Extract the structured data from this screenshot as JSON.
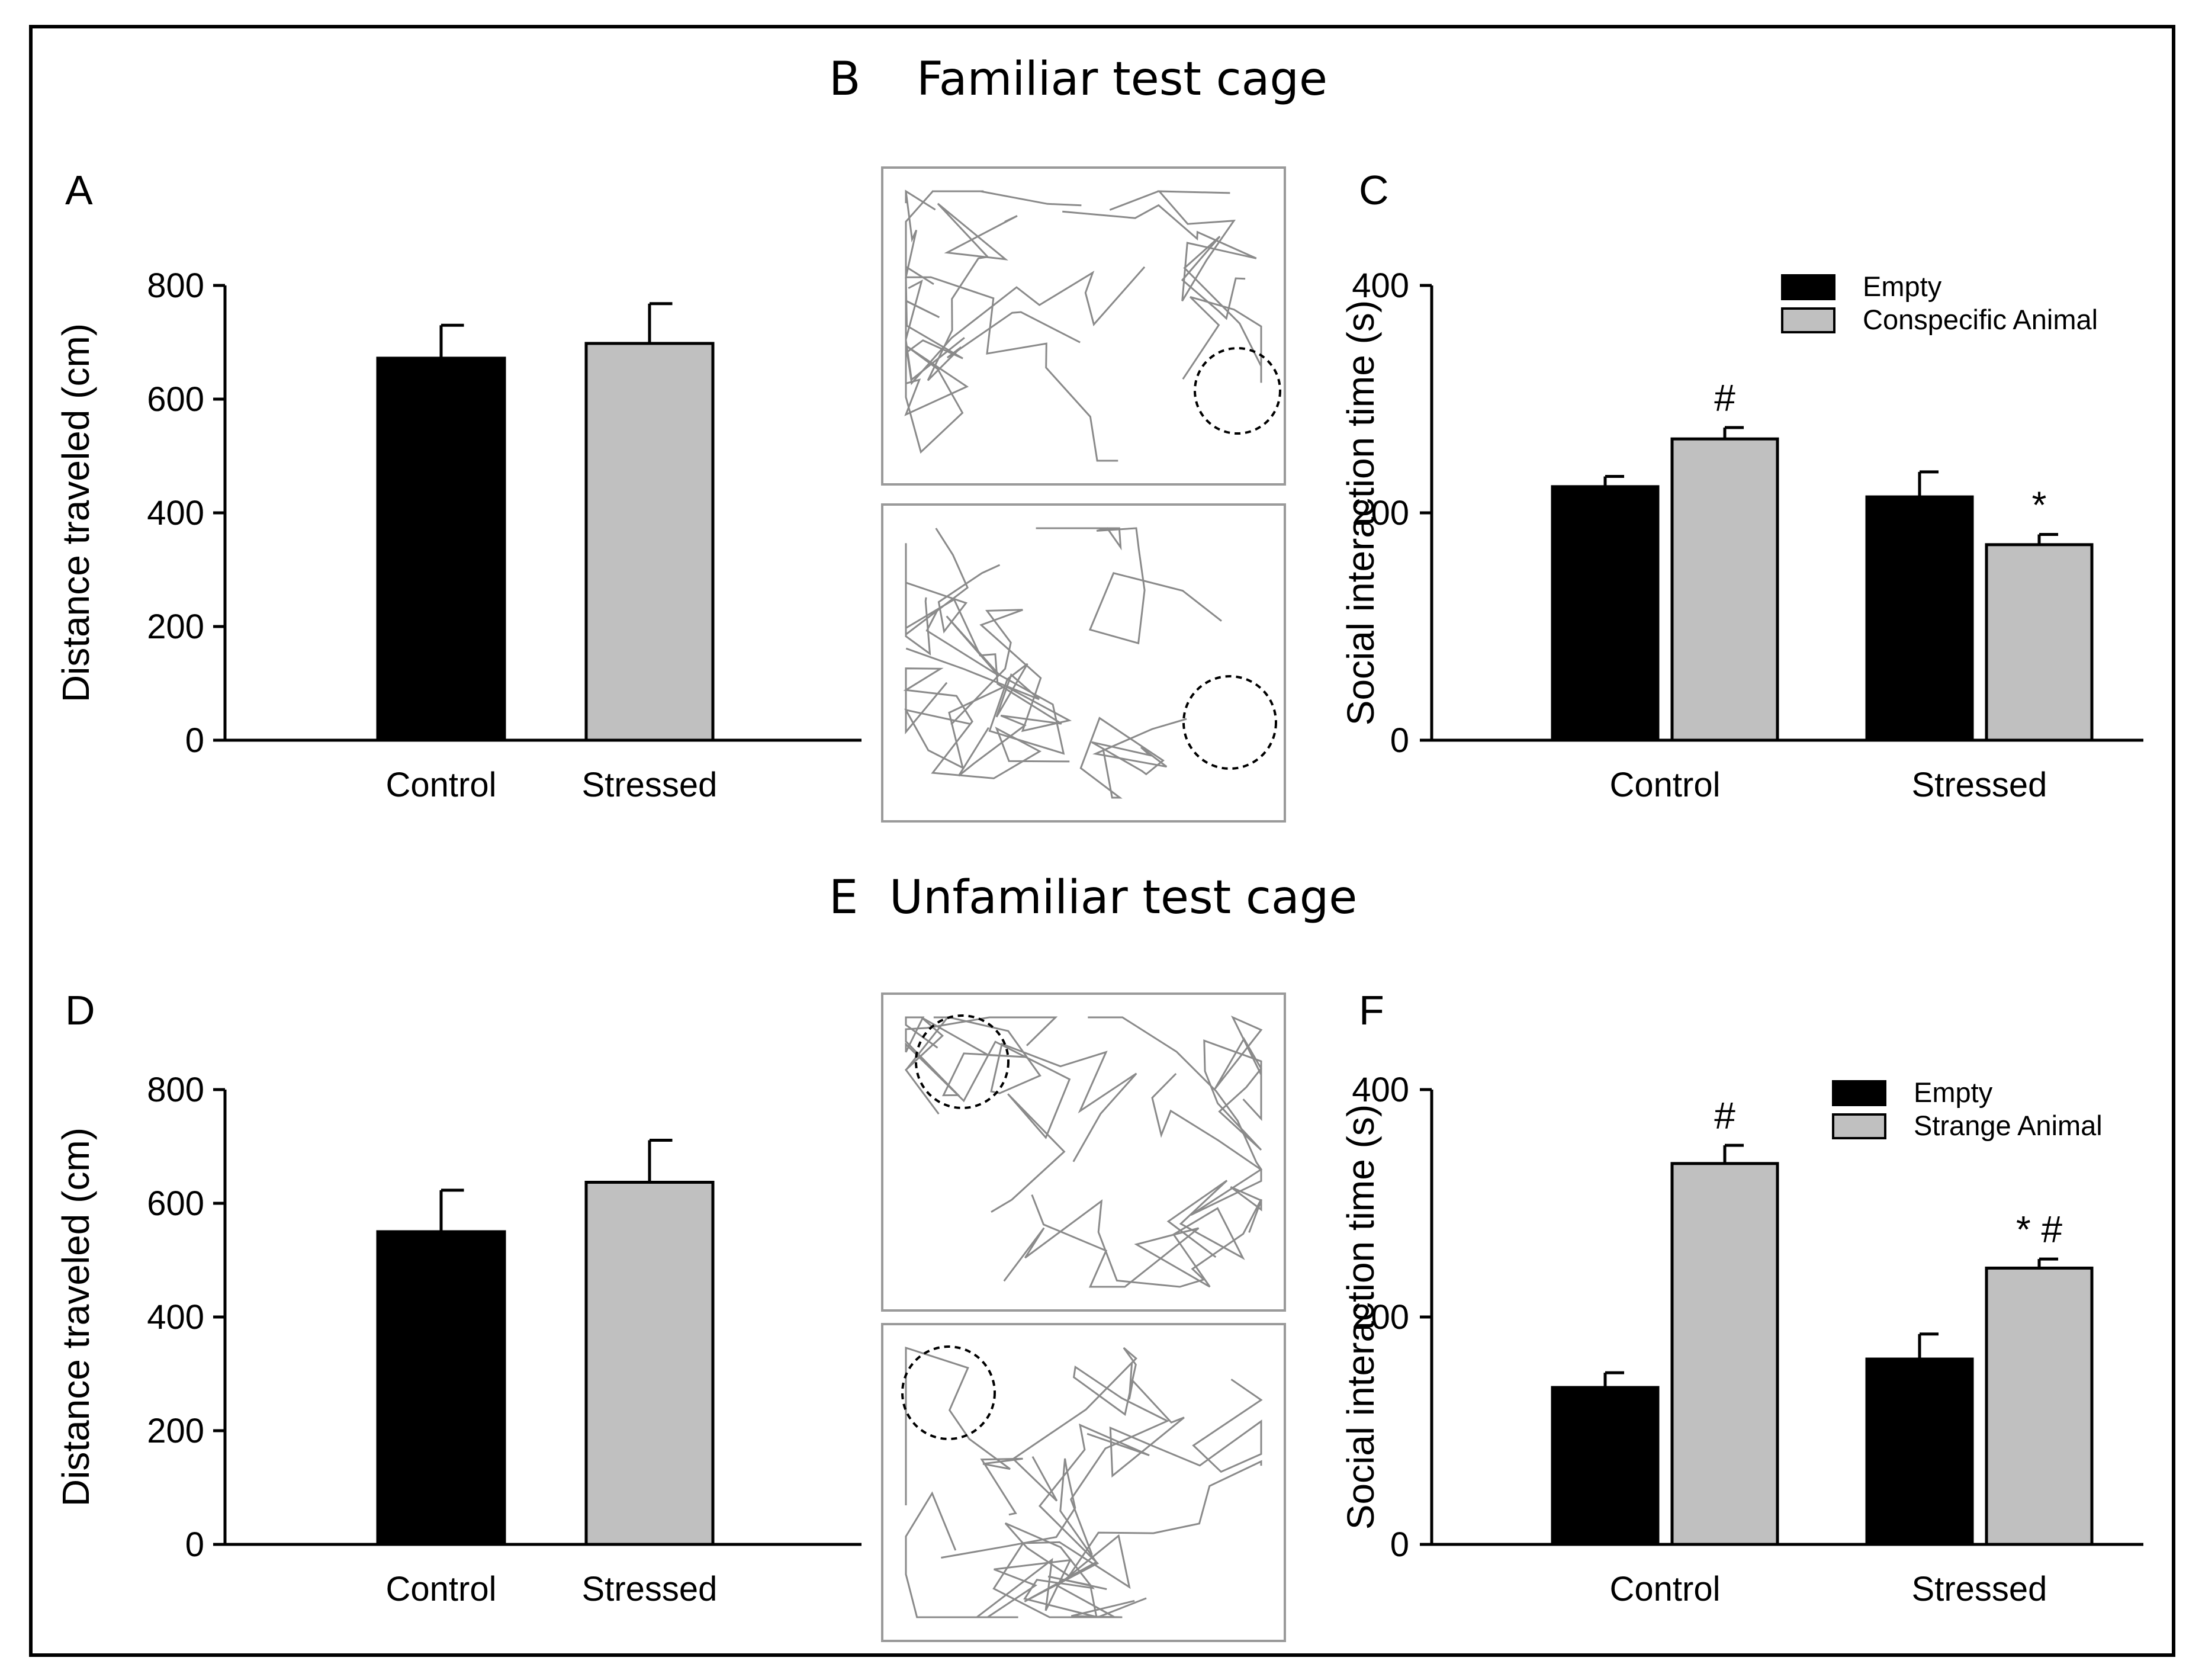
{
  "colors": {
    "black_bar": "#000000",
    "grey_bar": "#c0c0c0",
    "track": "#8a8a8a",
    "box_border": "#9a9a9a"
  },
  "section_titles": [
    {
      "letter": "B",
      "text": "Familiar test cage"
    },
    {
      "letter": "E",
      "text": "Unfamiliar test cage"
    }
  ],
  "track_panels": [
    "familiar-control-track",
    "familiar-stressed-track",
    "unfamiliar-control-track",
    "unfamiliar-stressed-track"
  ],
  "chart_data": [
    {
      "panel": "A",
      "type": "bar",
      "ylabel": "Distance traveled (cm)",
      "ylim": [
        0,
        800
      ],
      "yticks": [
        0,
        200,
        400,
        600,
        800
      ],
      "categories": [
        "Control",
        "Stressed"
      ],
      "values": [
        672,
        698
      ],
      "errors": [
        58,
        70
      ],
      "colors": [
        "#000000",
        "#c0c0c0"
      ]
    },
    {
      "panel": "C",
      "type": "bar",
      "ylabel": "Social interaction time (s)",
      "ylim": [
        0,
        400
      ],
      "yticks": [
        0,
        200,
        400
      ],
      "categories": [
        "Control",
        "Stressed"
      ],
      "series": [
        {
          "name": "Empty",
          "values": [
            223,
            214
          ],
          "errors": [
            9,
            22
          ],
          "marks": [
            "",
            ""
          ]
        },
        {
          "name": "Conspecific Animal",
          "values": [
            265,
            172
          ],
          "errors": [
            10,
            9
          ],
          "marks": [
            "#",
            "*"
          ]
        }
      ]
    },
    {
      "panel": "D",
      "type": "bar",
      "ylabel": "Distance traveled (cm)",
      "ylim": [
        0,
        800
      ],
      "yticks": [
        0,
        200,
        400,
        600,
        800
      ],
      "categories": [
        "Control",
        "Stressed"
      ],
      "values": [
        550,
        637
      ],
      "errors": [
        73,
        74
      ],
      "colors": [
        "#000000",
        "#c0c0c0"
      ]
    },
    {
      "panel": "F",
      "type": "bar",
      "ylabel": "Social interaction time (s)",
      "ylim": [
        0,
        400
      ],
      "yticks": [
        0,
        200,
        400
      ],
      "categories": [
        "Control",
        "Stressed"
      ],
      "series": [
        {
          "name": "Empty",
          "values": [
            138,
            163
          ],
          "errors": [
            13,
            22
          ],
          "marks": [
            "",
            ""
          ]
        },
        {
          "name": "Strange Animal",
          "values": [
            335,
            243
          ],
          "errors": [
            16,
            8
          ],
          "marks": [
            "#",
            "* #"
          ]
        }
      ]
    }
  ]
}
